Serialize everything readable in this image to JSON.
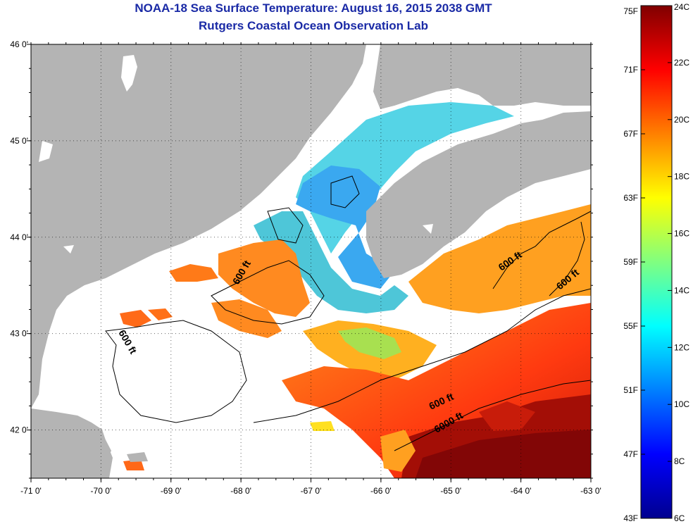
{
  "title": "NOAA-18 Sea Surface Temperature:  August 16, 2015 2038 GMT",
  "subtitle": "Rutgers Coastal Ocean Observation Lab",
  "map": {
    "lon_range": [
      -71,
      -63
    ],
    "lat_range": [
      41.5,
      46
    ],
    "lon_ticks": [
      {
        "value": -71,
        "label": "-71 0'"
      },
      {
        "value": -70,
        "label": "-70 0'"
      },
      {
        "value": -69,
        "label": "-69 0'"
      },
      {
        "value": -68,
        "label": "-68 0'"
      },
      {
        "value": -67,
        "label": "-67 0'"
      },
      {
        "value": -66,
        "label": "-66 0'"
      },
      {
        "value": -65,
        "label": "-65 0'"
      },
      {
        "value": -64,
        "label": "-64 0'"
      },
      {
        "value": -63,
        "label": "-63 0'"
      }
    ],
    "lat_ticks": [
      {
        "value": 46,
        "label": "46 0'"
      },
      {
        "value": 45,
        "label": "45 0'"
      },
      {
        "value": 44,
        "label": "44 0'"
      },
      {
        "value": 43,
        "label": "43 0'"
      },
      {
        "value": 42,
        "label": "42 0'"
      }
    ],
    "contour_labels": [
      "600 ft",
      "600 ft",
      "600 ft",
      "600 ft",
      "600 ft",
      "6000 ft"
    ],
    "land_color": "#b4b4b4",
    "no_data_color": "#ffffff",
    "grid": "dotted"
  },
  "colorbar": {
    "celsius_range": [
      6,
      24
    ],
    "fahrenheit_range": [
      43,
      75
    ],
    "celsius_labels": [
      "24C",
      "22C",
      "20C",
      "18C",
      "16C",
      "14C",
      "12C",
      "10C",
      "8C",
      "6C"
    ],
    "fahrenheit_labels": [
      "75F",
      "71F",
      "67F",
      "63F",
      "59F",
      "55F",
      "51F",
      "47F",
      "43F"
    ],
    "colors": [
      "#00008f",
      "#0000ff",
      "#0080ff",
      "#00ffff",
      "#80ff80",
      "#ffff00",
      "#ff8000",
      "#ff0000",
      "#800000"
    ]
  }
}
